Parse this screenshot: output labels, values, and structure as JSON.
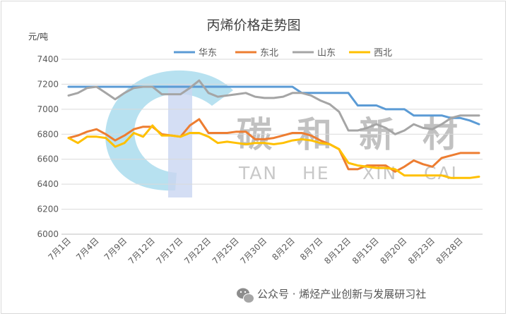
{
  "chart_data": {
    "type": "line",
    "title": "丙烯价格走势图",
    "ylabel": "元/吨",
    "ylim": [
      6000,
      7400
    ],
    "y_ticks": [
      "6000",
      "6200",
      "6400",
      "6600",
      "6800",
      "7000",
      "7200",
      "7400"
    ],
    "x_ticks": [
      "7月1日",
      "7月4日",
      "7月9日",
      "7月12日",
      "7月17日",
      "7月22日",
      "7月25日",
      "7月30日",
      "8月2日",
      "8月7日",
      "8月12日",
      "8月15日",
      "8月20日",
      "8月23日",
      "8月28日"
    ],
    "legend_position": "top",
    "grid": "horizontal",
    "series": [
      {
        "name": "华东",
        "color": "#5b9bd5",
        "values": [
          7180,
          7180,
          7180,
          7180,
          7180,
          7180,
          7180,
          7180,
          7180,
          7180,
          7180,
          7180,
          7180,
          7180,
          7180,
          7180,
          7180,
          7180,
          7180,
          7180,
          7180,
          7180,
          7180,
          7180,
          7180,
          7130,
          7130,
          7130,
          7130,
          7130,
          7130,
          7030,
          7030,
          7030,
          7000,
          7000,
          7000,
          6950,
          6950,
          6950,
          6950,
          6930,
          6930,
          6910,
          6880
        ]
      },
      {
        "name": "东北",
        "color": "#ed7d31",
        "values": [
          6770,
          6790,
          6820,
          6840,
          6800,
          6750,
          6790,
          6840,
          6860,
          6860,
          6800,
          6790,
          6780,
          6870,
          6920,
          6810,
          6810,
          6810,
          6820,
          6820,
          6760,
          6760,
          6770,
          6790,
          6810,
          6810,
          6790,
          6750,
          6720,
          6680,
          6520,
          6520,
          6550,
          6550,
          6550,
          6500,
          6540,
          6590,
          6560,
          6540,
          6610,
          6630,
          6650,
          6650,
          6650
        ]
      },
      {
        "name": "山东",
        "color": "#a5a5a5",
        "values": [
          7110,
          7130,
          7170,
          7180,
          7130,
          7080,
          7130,
          7170,
          7180,
          7180,
          7120,
          7120,
          7120,
          7170,
          7230,
          7130,
          7100,
          7110,
          7120,
          7130,
          7100,
          7090,
          7090,
          7100,
          7130,
          7130,
          7110,
          7070,
          7040,
          6980,
          6830,
          6830,
          6850,
          6880,
          6850,
          6800,
          6830,
          6880,
          6850,
          6840,
          6880,
          6930,
          6950,
          6950,
          6950
        ]
      },
      {
        "name": "西北",
        "color": "#ffc000",
        "values": [
          6770,
          6730,
          6780,
          6780,
          6770,
          6700,
          6730,
          6810,
          6780,
          6870,
          6790,
          6790,
          6780,
          6810,
          6810,
          6780,
          6730,
          6740,
          6730,
          6720,
          6730,
          6730,
          6720,
          6730,
          6750,
          6760,
          6750,
          6730,
          6720,
          6680,
          6570,
          6550,
          6540,
          6530,
          6530,
          6520,
          6470,
          6470,
          6470,
          6470,
          6470,
          6450,
          6450,
          6450,
          6460
        ]
      }
    ]
  },
  "watermark": {
    "chars": [
      "碳",
      "和",
      "新",
      "材"
    ],
    "pinyin": [
      "TAN",
      "HE",
      "XIN",
      "CAI"
    ]
  },
  "footer": {
    "text": "公众号 · 烯烃产业创新与发展研习社",
    "icon": "wechat-icon"
  }
}
